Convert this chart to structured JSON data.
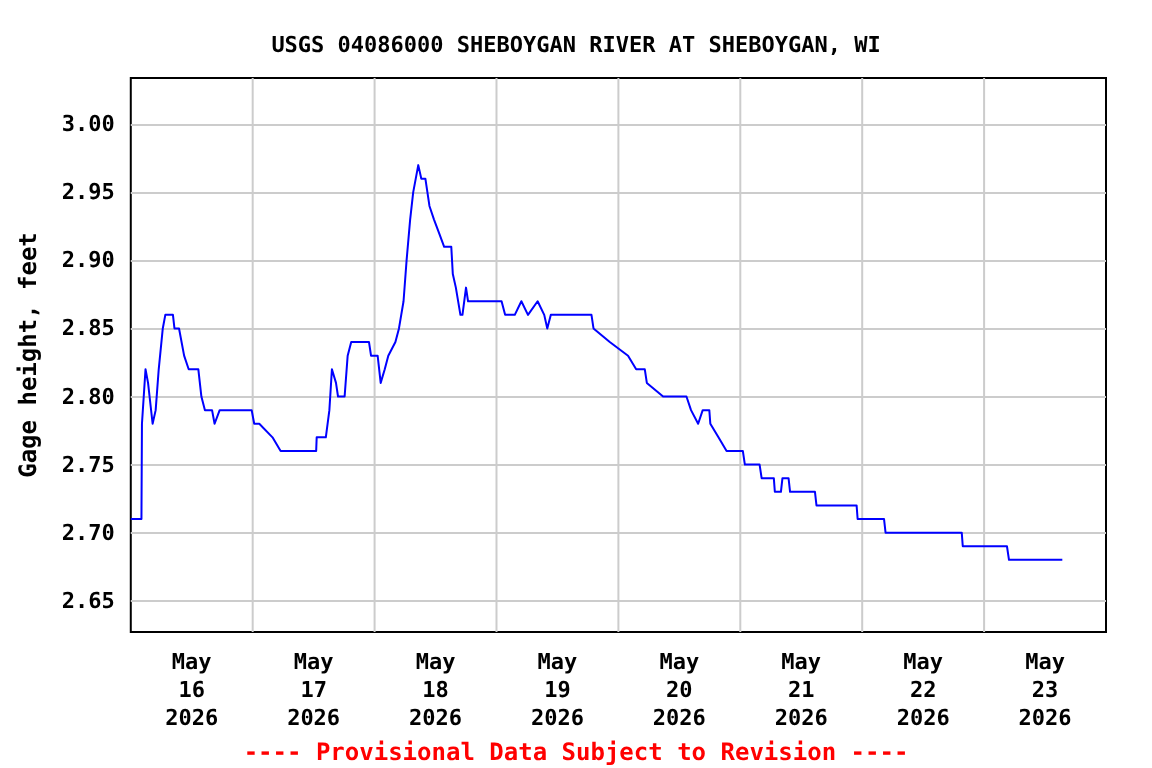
{
  "chart_data": {
    "type": "line",
    "title": "USGS 04086000 SHEBOYGAN RIVER AT SHEBOYGAN, WI",
    "ylabel": "Gage height, feet",
    "annotations": [
      "---- Provisional Data Subject to Revision ----"
    ],
    "xlim": [
      "2026-05-16T00:00",
      "2026-05-24T00:00"
    ],
    "xticks": [
      {
        "value": "2026-05-16T12:00",
        "label": "May\n16\n2026"
      },
      {
        "value": "2026-05-17T00:00",
        "label": null
      },
      {
        "value": "2026-05-17T12:00",
        "label": "May\n17\n2026"
      },
      {
        "value": "2026-05-18T00:00",
        "label": null
      },
      {
        "value": "2026-05-18T12:00",
        "label": "May\n18\n2026"
      },
      {
        "value": "2026-05-19T00:00",
        "label": null
      },
      {
        "value": "2026-05-19T12:00",
        "label": "May\n19\n2026"
      },
      {
        "value": "2026-05-20T00:00",
        "label": null
      },
      {
        "value": "2026-05-20T12:00",
        "label": "May\n20\n2026"
      },
      {
        "value": "2026-05-21T00:00",
        "label": null
      },
      {
        "value": "2026-05-21T12:00",
        "label": "May\n21\n2026"
      },
      {
        "value": "2026-05-22T00:00",
        "label": null
      },
      {
        "value": "2026-05-22T12:00",
        "label": "May\n22\n2026"
      },
      {
        "value": "2026-05-23T00:00",
        "label": null
      },
      {
        "value": "2026-05-23T12:00",
        "label": "May\n23\n2026"
      }
    ],
    "ylim": [
      2.627,
      3.034
    ],
    "yticks": [
      {
        "value": 2.65,
        "label": "2.65"
      },
      {
        "value": 2.7,
        "label": "2.70"
      },
      2.75,
      {
        "value": 2.8,
        "label": "2.80"
      },
      2.85,
      {
        "value": 2.9,
        "label": "2.90"
      },
      2.95,
      {
        "value": 3,
        "label": "3.00"
      }
    ],
    "grid": true,
    "marker": "none",
    "line_style": "solid",
    "series": [
      {
        "color": "#0000ff",
        "x": [
          "2026-05-16T00:00",
          "2026-05-16T02:06",
          "2026-05-16T02:12",
          "2026-05-16T02:54",
          "2026-05-16T03:24",
          "2026-05-16T04:18",
          "2026-05-16T04:54",
          "2026-05-16T05:30",
          "2026-05-16T06:18",
          "2026-05-16T06:48",
          "2026-05-16T08:18",
          "2026-05-16T08:36",
          "2026-05-16T09:30",
          "2026-05-16T10:30",
          "2026-05-16T11:24",
          "2026-05-16T13:18",
          "2026-05-16T13:54",
          "2026-05-16T14:36",
          "2026-05-16T16:00",
          "2026-05-16T16:30",
          "2026-05-16T17:30",
          "2026-05-16T20:06",
          "2026-05-16T23:48",
          "2026-05-17T00:18",
          "2026-05-17T01:18",
          "2026-05-17T03:54",
          "2026-05-17T05:30",
          "2026-05-17T12:30",
          "2026-05-17T12:36",
          "2026-05-17T14:24",
          "2026-05-17T15:06",
          "2026-05-17T15:36",
          "2026-05-17T16:24",
          "2026-05-17T16:48",
          "2026-05-17T18:06",
          "2026-05-17T18:42",
          "2026-05-17T19:24",
          "2026-05-17T20:12",
          "2026-05-17T22:54",
          "2026-05-17T23:18",
          "2026-05-18T00:36",
          "2026-05-18T01:12",
          "2026-05-18T02:00",
          "2026-05-18T02:42",
          "2026-05-18T04:06",
          "2026-05-18T04:48",
          "2026-05-18T05:42",
          "2026-05-18T06:18",
          "2026-05-18T07:00",
          "2026-05-18T07:36",
          "2026-05-18T08:36",
          "2026-05-18T09:12",
          "2026-05-18T10:00",
          "2026-05-18T10:48",
          "2026-05-18T11:42",
          "2026-05-18T12:42",
          "2026-05-18T13:42",
          "2026-05-18T15:06",
          "2026-05-18T15:24",
          "2026-05-18T16:00",
          "2026-05-18T16:54",
          "2026-05-18T17:18",
          "2026-05-18T18:00",
          "2026-05-18T18:24",
          "2026-05-19T01:00",
          "2026-05-19T01:42",
          "2026-05-19T03:36",
          "2026-05-19T04:54",
          "2026-05-19T06:12",
          "2026-05-19T08:06",
          "2026-05-19T09:24",
          "2026-05-19T10:00",
          "2026-05-19T10:42",
          "2026-05-19T13:54",
          "2026-05-19T14:30",
          "2026-05-19T18:42",
          "2026-05-19T19:06",
          "2026-05-19T22:18",
          "2026-05-20T01:54",
          "2026-05-20T03:30",
          "2026-05-20T05:12",
          "2026-05-20T05:36",
          "2026-05-20T08:48",
          "2026-05-20T13:24",
          "2026-05-20T14:18",
          "2026-05-20T15:42",
          "2026-05-20T16:36",
          "2026-05-20T17:54",
          "2026-05-20T18:06",
          "2026-05-20T19:42",
          "2026-05-20T21:18",
          "2026-05-21T00:30",
          "2026-05-21T00:54",
          "2026-05-21T03:48",
          "2026-05-21T04:12",
          "2026-05-21T06:36",
          "2026-05-21T06:48",
          "2026-05-21T08:00",
          "2026-05-21T08:18",
          "2026-05-21T09:30",
          "2026-05-21T09:48",
          "2026-05-21T14:42",
          "2026-05-21T15:00",
          "2026-05-21T22:54",
          "2026-05-21T23:06",
          "2026-05-22T04:18",
          "2026-05-22T04:36",
          "2026-05-22T19:36",
          "2026-05-22T19:48",
          "2026-05-23T04:30",
          "2026-05-23T04:54",
          "2026-05-23T15:24"
        ],
        "values": [
          2.71,
          2.71,
          2.78,
          2.82,
          2.81,
          2.78,
          2.79,
          2.82,
          2.85,
          2.86,
          2.86,
          2.85,
          2.85,
          2.83,
          2.82,
          2.82,
          2.8,
          2.79,
          2.79,
          2.78,
          2.79,
          2.79,
          2.79,
          2.78,
          2.78,
          2.77,
          2.76,
          2.76,
          2.77,
          2.77,
          2.79,
          2.82,
          2.81,
          2.8,
          2.8,
          2.83,
          2.84,
          2.84,
          2.84,
          2.83,
          2.83,
          2.81,
          2.82,
          2.83,
          2.84,
          2.85,
          2.87,
          2.9,
          2.93,
          2.95,
          2.97,
          2.96,
          2.96,
          2.94,
          2.93,
          2.92,
          2.91,
          2.91,
          2.89,
          2.88,
          2.86,
          2.86,
          2.88,
          2.87,
          2.87,
          2.86,
          2.86,
          2.87,
          2.86,
          2.87,
          2.86,
          2.85,
          2.86,
          2.86,
          2.86,
          2.86,
          2.85,
          2.84,
          2.83,
          2.82,
          2.82,
          2.81,
          2.8,
          2.8,
          2.79,
          2.78,
          2.79,
          2.79,
          2.78,
          2.77,
          2.76,
          2.76,
          2.75,
          2.75,
          2.74,
          2.74,
          2.73,
          2.73,
          2.74,
          2.74,
          2.73,
          2.73,
          2.72,
          2.72,
          2.71,
          2.71,
          2.7,
          2.7,
          2.69,
          2.69,
          2.68,
          2.68
        ]
      }
    ]
  }
}
